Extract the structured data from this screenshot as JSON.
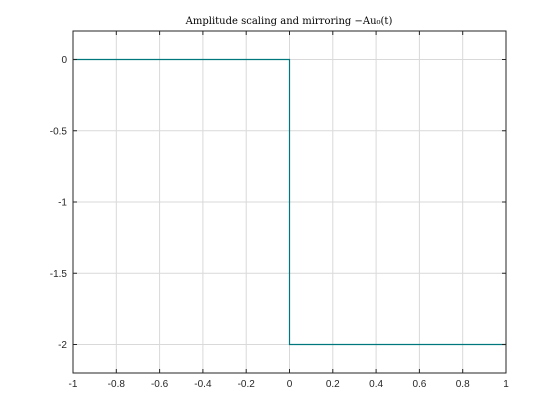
{
  "chart_data": {
    "type": "line",
    "title": "Amplitude scaling and mirroring  −Au₀(t)",
    "xlabel": "",
    "ylabel": "",
    "xlim": [
      -1,
      1
    ],
    "ylim": [
      -2.2,
      0.2
    ],
    "grid": true,
    "xticks": [
      -1,
      -0.8,
      -0.6,
      -0.4,
      -0.2,
      0,
      0.2,
      0.4,
      0.6,
      0.8,
      1
    ],
    "xtick_labels": [
      "-1",
      "-0.8",
      "-0.6",
      "-0.4",
      "-0.2",
      "0",
      "0.2",
      "0.4",
      "0.6",
      "0.8",
      "1"
    ],
    "yticks": [
      0,
      -0.5,
      -1,
      -1.5,
      -2
    ],
    "ytick_labels": [
      "0",
      "-0.5",
      "-1",
      "-1.5",
      "-2"
    ],
    "series": [
      {
        "color": "#00777c",
        "x": [
          -1,
          0,
          0,
          1
        ],
        "y": [
          0,
          0,
          -2,
          -2
        ]
      }
    ]
  }
}
